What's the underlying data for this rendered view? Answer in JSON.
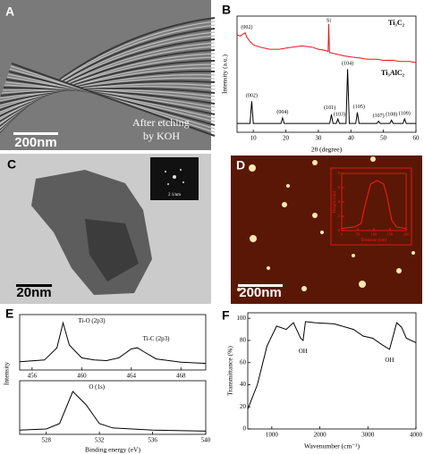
{
  "images": [
    {
      "label": "A",
      "scale_bar": "200nm",
      "caption": [
        "After etching",
        "by KOH"
      ]
    },
    {
      "label": "C",
      "scale_bar": "20nm",
      "inset_scale": "2 1/nm"
    },
    {
      "label": "D",
      "scale_bar": "200nm"
    }
  ],
  "chart_data": [
    {
      "type": "line",
      "label": "B",
      "xlabel": "2θ (degree)",
      "ylabel": "Intensity (a.u.)",
      "xlim": [
        5,
        60
      ],
      "xticks": [
        10,
        20,
        30,
        40,
        50,
        60
      ],
      "ylim": [
        0,
        105
      ],
      "series": [
        {
          "name": "Ti₃C₂",
          "color": "#e8141b",
          "x": [
            5,
            6,
            7,
            7.5,
            8,
            9,
            10,
            12,
            15,
            18,
            20,
            22,
            25,
            28,
            30,
            32,
            33,
            33.2,
            33.4,
            35,
            38,
            40,
            43,
            45,
            48,
            50,
            53,
            55,
            58,
            60
          ],
          "values": [
            88,
            87,
            89,
            90,
            86,
            82,
            79,
            77,
            75,
            75,
            76,
            77,
            78,
            77,
            75,
            74,
            73,
            98,
            72,
            71,
            69,
            68,
            67,
            66,
            66,
            65,
            65,
            64,
            64,
            63
          ]
        },
        {
          "name": "Ti₃AlC₂",
          "color": "#000000",
          "x": [
            5,
            9,
            9.5,
            10,
            18.5,
            19,
            19.5,
            33.5,
            34,
            34.5,
            35.5,
            36,
            36.5,
            38.5,
            39,
            39.5,
            41.5,
            42,
            42.5,
            48,
            48.5,
            49,
            52,
            52.5,
            53,
            56,
            56.5,
            57,
            60
          ],
          "values": [
            8,
            8,
            28,
            8,
            8,
            13,
            8,
            8,
            16,
            8,
            8,
            12,
            8,
            8,
            57,
            8,
            8,
            18,
            8,
            8,
            10,
            8,
            8,
            11,
            8,
            8,
            12,
            8,
            8
          ]
        }
      ],
      "annotations": [
        {
          "text": "(002)",
          "x": 8,
          "y": 95
        },
        {
          "text": "Si",
          "x": 33.2,
          "y": 101
        },
        {
          "text": "(002)",
          "x": 9.5,
          "y": 33
        },
        {
          "text": "(004)",
          "x": 19,
          "y": 18
        },
        {
          "text": "(101)",
          "x": 33.5,
          "y": 22
        },
        {
          "text": "(103)",
          "x": 36.5,
          "y": 16
        },
        {
          "text": "(104)",
          "x": 39,
          "y": 62
        },
        {
          "text": "(105)",
          "x": 42.5,
          "y": 23
        },
        {
          "text": "(107)",
          "x": 48.5,
          "y": 15
        },
        {
          "text": "(108)",
          "x": 52.5,
          "y": 16
        },
        {
          "text": "(109)",
          "x": 56.5,
          "y": 17
        }
      ]
    },
    {
      "type": "line",
      "xlabel": "Distance (nm)",
      "ylabel": "Height (nm)",
      "xlim": [
        0,
        200
      ],
      "xticks": [
        0,
        50,
        100,
        150,
        200
      ],
      "ylim": [
        0,
        8
      ],
      "yticks": [
        0,
        2,
        4,
        6,
        8
      ],
      "series": [
        {
          "name": null,
          "color": "#ff1a1a",
          "x": [
            0,
            40,
            60,
            75,
            90,
            110,
            130,
            140,
            155,
            170,
            200
          ],
          "values": [
            0.3,
            0.5,
            1,
            4,
            6.5,
            7,
            6.5,
            5,
            1.5,
            0.5,
            0.3
          ]
        }
      ]
    },
    {
      "type": "line",
      "label": "E",
      "ylabel": "Intensity",
      "xlim": [
        455,
        470
      ],
      "xticks": [
        456,
        460,
        464,
        468
      ],
      "ylim": [
        0,
        100
      ],
      "series": [
        {
          "name": null,
          "color": "#000000",
          "x": [
            455,
            457,
            458,
            458.5,
            459,
            460,
            461,
            462,
            463,
            464,
            464.5,
            465,
            466,
            468,
            470
          ],
          "values": [
            15,
            18,
            40,
            85,
            45,
            22,
            18,
            17,
            22,
            38,
            40,
            33,
            20,
            14,
            12
          ]
        }
      ],
      "annotations": [
        {
          "text": "Ti-O (2p3)",
          "x": 460.8,
          "y": 88
        },
        {
          "text": "Ti-C (2p3)",
          "x": 466,
          "y": 56
        }
      ]
    },
    {
      "type": "line",
      "xlabel": "Binding energy (eV)",
      "xlim": [
        526,
        540
      ],
      "xticks": [
        528,
        532,
        536,
        540
      ],
      "ylim": [
        0,
        100
      ],
      "series": [
        {
          "name": null,
          "color": "#000000",
          "x": [
            526,
            528,
            529,
            530,
            531,
            532,
            533,
            536,
            540
          ],
          "values": [
            8,
            10,
            20,
            80,
            55,
            20,
            12,
            8,
            6
          ]
        }
      ],
      "annotations": [
        {
          "text": "O (1s)",
          "x": 531.8,
          "y": 88
        }
      ]
    },
    {
      "type": "line",
      "label": "F",
      "xlabel": "Wavenumber (cm⁻¹)",
      "ylabel": "Transmittance (%)",
      "xlim": [
        500,
        4000
      ],
      "xticks": [
        1000,
        2000,
        3000,
        4000
      ],
      "ylim": [
        0,
        105
      ],
      "yticks": [
        0,
        20,
        40,
        60,
        80,
        100
      ],
      "series": [
        {
          "name": null,
          "color": "#000000",
          "x": [
            500,
            700,
            900,
            1100,
            1300,
            1450,
            1600,
            1650,
            1700,
            1900,
            2300,
            2700,
            2900,
            3100,
            3300,
            3450,
            3600,
            3700,
            3800,
            4000
          ],
          "values": [
            18,
            40,
            75,
            93,
            90,
            96,
            82,
            80,
            97,
            96,
            95,
            90,
            84,
            82,
            76,
            72,
            96,
            92,
            82,
            78
          ]
        }
      ],
      "annotations": [
        {
          "text": "OH",
          "x": 1650,
          "y": 70
        },
        {
          "text": "OH",
          "x": 3450,
          "y": 62
        }
      ]
    }
  ]
}
